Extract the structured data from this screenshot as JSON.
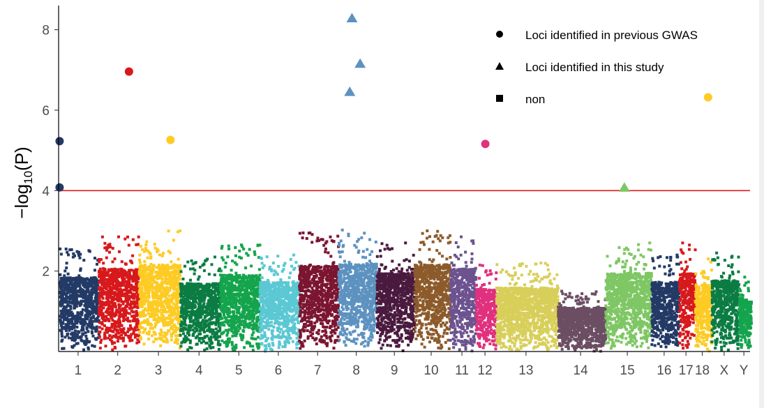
{
  "chart_data": {
    "type": "scatter",
    "title": "",
    "xlabel": "",
    "ylabel": "−log10(P)",
    "ylabel_parts": {
      "prefix": "−log",
      "sub": "10",
      "suffix": "(P)"
    },
    "ylim": [
      0,
      8.6
    ],
    "yticks": [
      2,
      4,
      6,
      8
    ],
    "threshold": {
      "y": 4.0,
      "color": "#e31a1c"
    },
    "chromosomes": [
      {
        "name": "1",
        "label": "1",
        "start": 0.0,
        "end": 0.1578,
        "color": "#233a66",
        "peak": 2.55
      },
      {
        "name": "2",
        "label": "2",
        "start": 0.1578,
        "end": 0.3208,
        "color": "#d7191c",
        "peak": 2.85
      },
      {
        "name": "3",
        "label": "3",
        "start": 0.3208,
        "end": 0.4877,
        "color": "#fdcb24",
        "peak": 3.0
      },
      {
        "name": "4",
        "label": "4",
        "start": 0.4877,
        "end": 0.6497,
        "color": "#0b7c43",
        "peak": 2.35
      },
      {
        "name": "5",
        "label": "5",
        "start": 0.6497,
        "end": 0.8098,
        "color": "#14a44d",
        "peak": 2.65
      },
      {
        "name": "6",
        "label": "6",
        "start": 0.8098,
        "end": 0.9696,
        "color": "#5bc8d3",
        "peak": 2.4
      },
      {
        "name": "7",
        "label": "7",
        "start": 0.9696,
        "end": 1.1278,
        "color": "#7b1530",
        "peak": 2.95
      },
      {
        "name": "8",
        "label": "8",
        "start": 1.1278,
        "end": 1.283,
        "color": "#5d92c0",
        "peak": 3.02
      },
      {
        "name": "9",
        "label": "9",
        "start": 1.283,
        "end": 1.4363,
        "color": "#4a1a3e",
        "peak": 2.7
      },
      {
        "name": "10",
        "label": "10",
        "start": 1.4363,
        "end": 1.5813,
        "color": "#8d5b2b",
        "peak": 3.0
      },
      {
        "name": "11",
        "label": "11",
        "start": 1.5813,
        "end": 1.6852,
        "color": "#6c538f",
        "peak": 2.85
      },
      {
        "name": "12",
        "label": "12",
        "start": 1.6852,
        "end": 1.768,
        "color": "#e0307e",
        "peak": 2.15
      },
      {
        "name": "13",
        "label": "13",
        "start": 1.768,
        "end": 2.0174,
        "color": "#d8cf5a",
        "peak": 2.2
      },
      {
        "name": "14",
        "label": "14",
        "start": 2.0174,
        "end": 2.21,
        "color": "#6b4e63",
        "peak": 1.5
      },
      {
        "name": "15",
        "label": "15",
        "start": 2.21,
        "end": 2.3961,
        "color": "#7ec764",
        "peak": 2.7
      },
      {
        "name": "16",
        "label": "16",
        "start": 2.3961,
        "end": 2.5081,
        "color": "#233a66",
        "peak": 2.4
      },
      {
        "name": "17",
        "label": "17",
        "start": 2.5081,
        "end": 2.5731,
        "color": "#d7191c",
        "peak": 2.7
      },
      {
        "name": "18",
        "label": "18",
        "start": 2.5731,
        "end": 2.64,
        "color": "#fdcb24",
        "peak": 2.3
      },
      {
        "name": "X",
        "label": "X",
        "start": 2.64,
        "end": 2.75,
        "color": "#0b7c43",
        "peak": 2.45
      },
      {
        "name": "Y",
        "label": "Y",
        "start": 2.75,
        "end": 2.8,
        "color": "#14a44d",
        "peak": 1.85
      }
    ],
    "highlighted_loci": [
      {
        "chr": "1",
        "pos": 0.004,
        "y": 5.23,
        "shape": "circle",
        "color": "#233a66"
      },
      {
        "chr": "1",
        "pos": 0.004,
        "y": 4.08,
        "shape": "circle",
        "color": "#233a66"
      },
      {
        "chr": "2",
        "pos": 0.285,
        "y": 6.96,
        "shape": "circle",
        "color": "#d7191c"
      },
      {
        "chr": "3",
        "pos": 0.453,
        "y": 5.26,
        "shape": "circle",
        "color": "#fdcb24"
      },
      {
        "chr": "8",
        "pos": 1.188,
        "y": 8.28,
        "shape": "triangle",
        "color": "#5d92c0"
      },
      {
        "chr": "8",
        "pos": 1.221,
        "y": 7.15,
        "shape": "triangle",
        "color": "#5d92c0"
      },
      {
        "chr": "8",
        "pos": 1.179,
        "y": 6.45,
        "shape": "triangle",
        "color": "#5d92c0"
      },
      {
        "chr": "12",
        "pos": 1.728,
        "y": 5.16,
        "shape": "circle",
        "color": "#e0307e"
      },
      {
        "chr": "15",
        "pos": 2.291,
        "y": 4.07,
        "shape": "triangle",
        "color": "#7ec764"
      },
      {
        "chr": "18",
        "pos": 2.63,
        "y": 6.32,
        "shape": "circle",
        "color": "#fdcb24"
      }
    ],
    "legend": {
      "position": "top-right",
      "entries": [
        {
          "shape": "circle",
          "label": "Loci identified in previous GWAS"
        },
        {
          "shape": "triangle",
          "label": "Loci identified in this study"
        },
        {
          "shape": "square",
          "label": "non"
        }
      ]
    },
    "grid": false
  }
}
